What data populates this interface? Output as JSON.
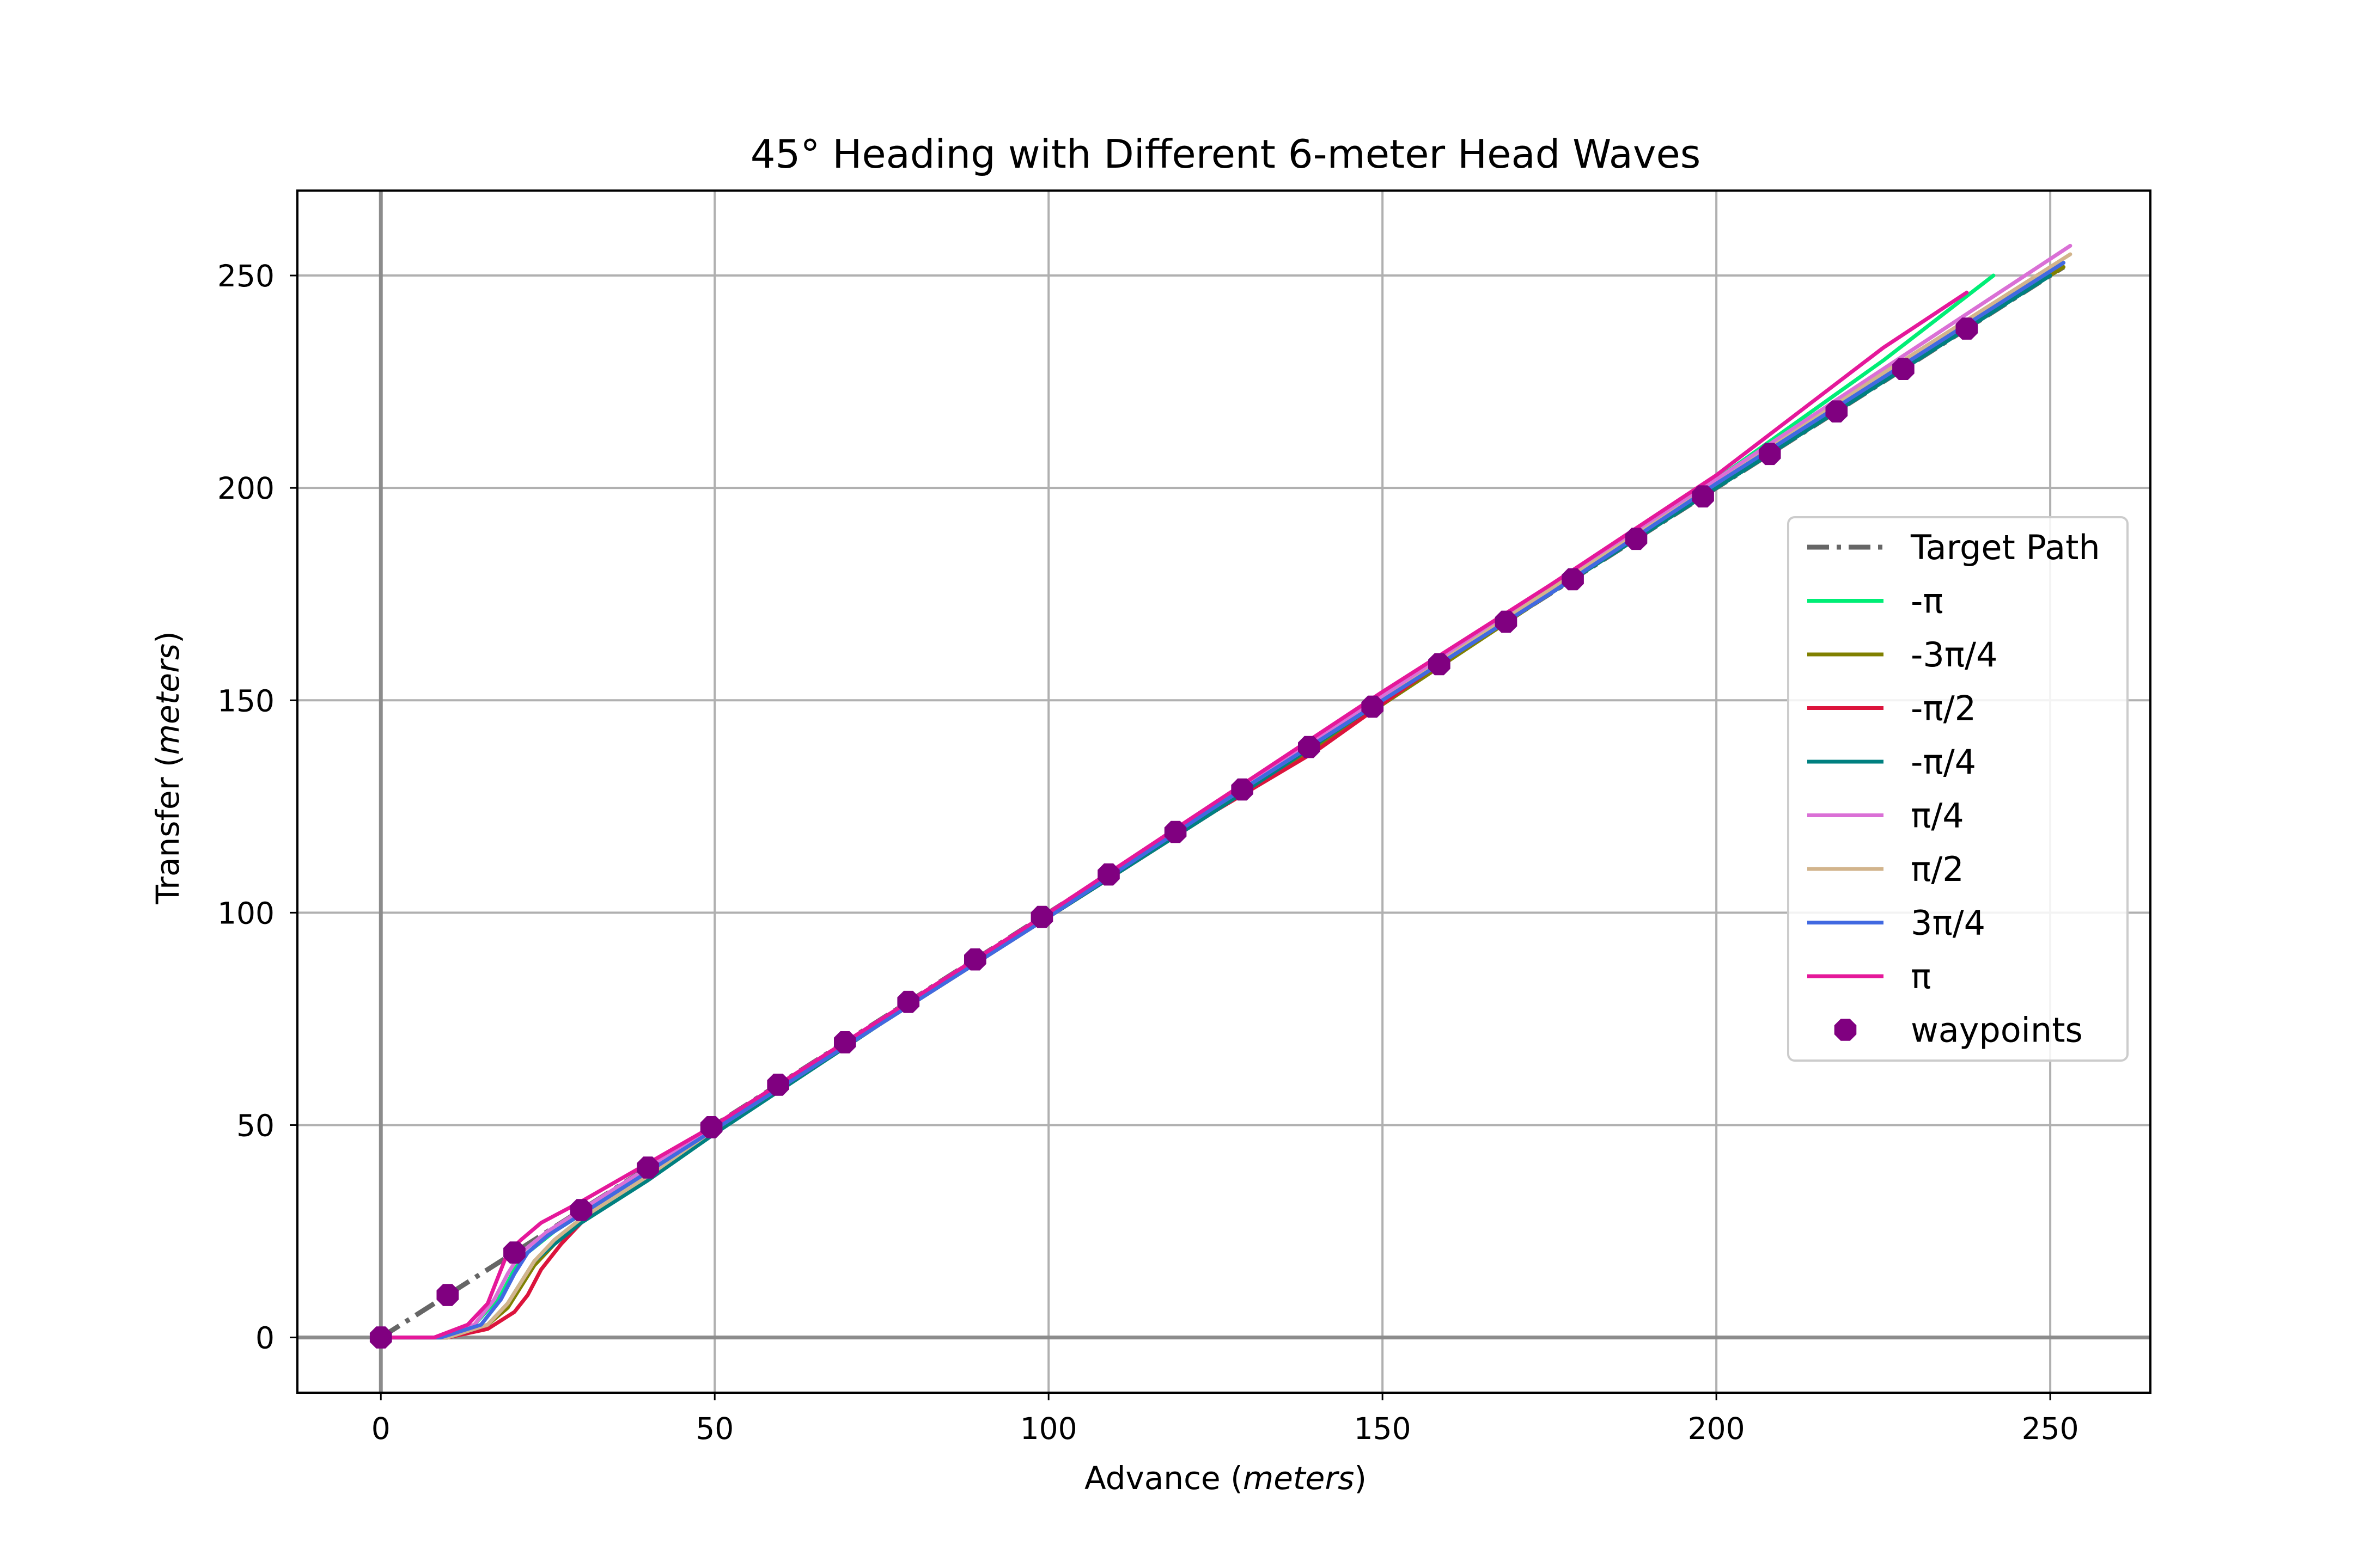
{
  "chart_data": {
    "type": "line",
    "title": "45° Heading with Different 6-meter Head Waves",
    "xlabel": "Advance",
    "xlabel_unit": "meters",
    "ylabel": "Transfer",
    "ylabel_unit": "meters",
    "xlim": [
      -12.5,
      265
    ],
    "ylim": [
      -13,
      270
    ],
    "x_ticks": [
      0,
      50,
      100,
      150,
      200,
      250
    ],
    "y_ticks": [
      0,
      50,
      100,
      150,
      200,
      250
    ],
    "grid": true,
    "legend_position": "center-right",
    "target_path": {
      "name": "Target Path",
      "color": "#666666",
      "style": "dash-dot",
      "x": [
        0,
        252
      ],
      "y": [
        0,
        252
      ]
    },
    "series": [
      {
        "name": "-π",
        "color": "#00ee76",
        "x": [
          0,
          8,
          14,
          18,
          20,
          22,
          26,
          30,
          40,
          50,
          75,
          100,
          125,
          150,
          175,
          200,
          225,
          241.5
        ],
        "y": [
          0,
          0,
          3,
          10,
          16,
          20,
          25,
          29,
          39,
          49,
          74,
          100,
          125,
          150,
          176,
          202,
          230,
          250
        ]
      },
      {
        "name": "-3π/4",
        "color": "#808000",
        "x": [
          0,
          10,
          16,
          19,
          21,
          23,
          26,
          30,
          40,
          50,
          75,
          100,
          125,
          150,
          175,
          200,
          225,
          252
        ],
        "y": [
          0,
          0,
          3,
          7,
          12,
          17,
          22,
          27,
          38,
          49,
          74,
          99,
          124,
          149,
          175,
          200,
          225,
          252
        ]
      },
      {
        "name": "-π/2",
        "color": "#dc143c",
        "x": [
          0,
          10,
          16,
          20,
          22,
          24,
          27,
          30,
          40,
          50,
          75,
          100,
          125,
          140,
          157
        ],
        "y": [
          0,
          0,
          2,
          6,
          10,
          16,
          22,
          27,
          38,
          49,
          74,
          99,
          124,
          138,
          157
        ]
      },
      {
        "name": "-π/4",
        "color": "#008080",
        "x": [
          0,
          10,
          16,
          19,
          21,
          23,
          26,
          30,
          40,
          50,
          75,
          100,
          125,
          150,
          175,
          200,
          225,
          250
        ],
        "y": [
          0,
          0,
          3,
          8,
          13,
          18,
          22,
          27,
          37,
          48,
          74,
          99,
          124,
          150,
          175,
          200,
          225,
          250
        ]
      },
      {
        "name": "π/4",
        "color": "#da70d6",
        "x": [
          0,
          8,
          14,
          17,
          19,
          21,
          25,
          30,
          40,
          50,
          75,
          100,
          125,
          150,
          175,
          200,
          225,
          253
        ],
        "y": [
          0,
          0,
          3,
          9,
          15,
          20,
          25,
          30,
          40,
          50,
          75,
          100,
          126,
          151,
          177,
          202,
          228,
          257
        ]
      },
      {
        "name": "π/2",
        "color": "#d2b48c",
        "x": [
          0,
          10,
          16,
          19,
          21,
          23,
          26,
          30,
          40,
          50,
          75,
          100,
          125,
          150,
          175,
          200,
          225,
          253
        ],
        "y": [
          0,
          0,
          3,
          8,
          13,
          18,
          23,
          28,
          38,
          49,
          74,
          100,
          125,
          150,
          176,
          201,
          227,
          255
        ]
      },
      {
        "name": "3π/4",
        "color": "#4169e1",
        "x": [
          0,
          9,
          15,
          18,
          20,
          22,
          25,
          30,
          40,
          50,
          75,
          100,
          125,
          150,
          175,
          200,
          225,
          252
        ],
        "y": [
          0,
          0,
          3,
          9,
          15,
          20,
          24,
          29,
          39,
          49,
          74,
          99,
          125,
          150,
          175,
          201,
          226,
          253
        ]
      },
      {
        "name": "π",
        "color": "#e5189a",
        "x": [
          0,
          8,
          13,
          16,
          18,
          19,
          21,
          24,
          30,
          40,
          50,
          75,
          100,
          125,
          150,
          175,
          200,
          225,
          237.5
        ],
        "y": [
          0,
          0,
          3,
          8,
          16,
          20,
          23,
          27,
          32,
          41,
          50,
          75,
          100,
          126,
          152,
          177,
          203,
          233,
          246
        ]
      }
    ],
    "waypoints": {
      "name": "waypoints",
      "color": "#800080",
      "x": [
        0,
        10,
        20,
        30,
        40,
        49.5,
        59.5,
        69.5,
        79,
        89,
        99,
        109,
        119,
        129,
        139,
        148.5,
        158.5,
        168.5,
        178.5,
        188,
        198,
        208,
        218,
        228,
        237.5
      ],
      "y": [
        0,
        10,
        20,
        30,
        40,
        49.5,
        59.5,
        69.5,
        79,
        89,
        99,
        109,
        119,
        129,
        139,
        148.5,
        158.5,
        168.5,
        178.5,
        188,
        198,
        208,
        218,
        228,
        237.5
      ]
    }
  }
}
